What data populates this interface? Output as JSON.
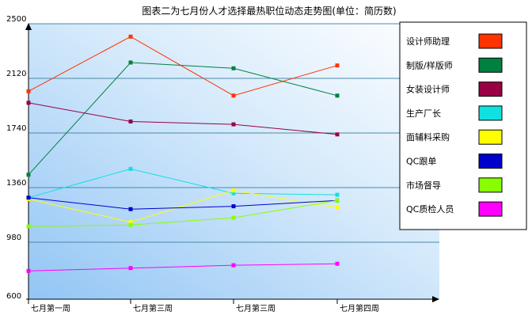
{
  "chart_data": {
    "type": "line",
    "title": "图表二为七月份人才选择最热职位动态走势图(单位：简历数)",
    "categories": [
      "七月第一周",
      "七月第三周",
      "七月第三周",
      "七月第四周"
    ],
    "yticks": [
      600,
      980,
      1360,
      1740,
      2120,
      2500
    ],
    "ylim": [
      600,
      2500
    ],
    "grid": true,
    "legend_position": "right",
    "series": [
      {
        "name": "设计师助理",
        "color": "#ff3300",
        "values": [
          2030,
          2410,
          2000,
          2210
        ]
      },
      {
        "name": "制版/样版师",
        "color": "#008040",
        "values": [
          1450,
          2230,
          2190,
          2000
        ]
      },
      {
        "name": "女装设计师",
        "color": "#990044",
        "values": [
          1950,
          1820,
          1800,
          1730
        ]
      },
      {
        "name": "生产厂长",
        "color": "#11e0e0",
        "values": [
          1290,
          1490,
          1320,
          1310
        ]
      },
      {
        "name": "面辅料采购",
        "color": "#ffff00",
        "values": [
          1280,
          1120,
          1340,
          1220
        ]
      },
      {
        "name": "QC跟单",
        "color": "#0000cc",
        "values": [
          1290,
          1210,
          1230,
          1270
        ]
      },
      {
        "name": "市场督导",
        "color": "#88ff00",
        "values": [
          1090,
          1100,
          1150,
          1270
        ]
      },
      {
        "name": "QC质检人员",
        "color": "#ff00ff",
        "values": [
          780,
          800,
          820,
          830
        ]
      }
    ]
  }
}
